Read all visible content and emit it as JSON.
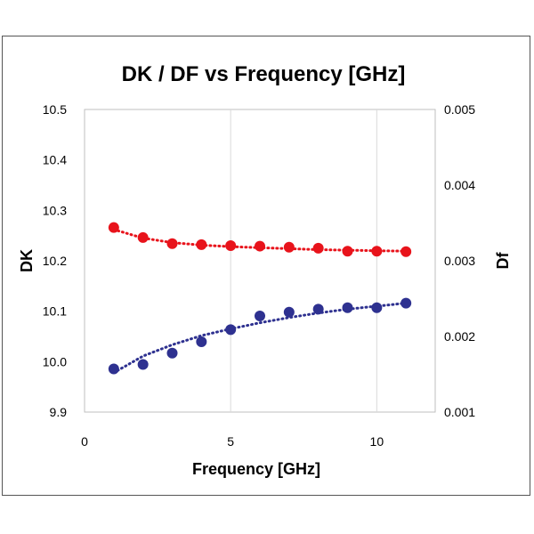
{
  "chart_data": {
    "type": "scatter",
    "title": "DK / DF vs Frequency [GHz]",
    "xlabel": "Frequency [GHz]",
    "ylabel": "DK",
    "y2label": "Df",
    "xlim": [
      0,
      12
    ],
    "ylim": [
      9.9,
      10.5
    ],
    "y2lim": [
      0.001,
      0.005
    ],
    "x_ticks": [
      "0",
      "5",
      "10"
    ],
    "x_tick_values": [
      0,
      5,
      10
    ],
    "y_ticks": [
      "9.9",
      "10.0",
      "10.1",
      "10.2",
      "10.3",
      "10.4",
      "10.5"
    ],
    "y_tick_values": [
      9.9,
      10.0,
      10.1,
      10.2,
      10.3,
      10.4,
      10.5
    ],
    "y2_ticks": [
      "0.001",
      "0.002",
      "0.003",
      "0.004",
      "0.005"
    ],
    "y2_tick_values": [
      0.001,
      0.002,
      0.003,
      0.004,
      0.005
    ],
    "grid": "vertical",
    "series": [
      {
        "name": "DK",
        "axis": "left",
        "color": "#e8131b",
        "x": [
          1,
          2,
          3,
          4,
          5,
          6,
          7,
          8,
          9,
          10,
          11
        ],
        "values": [
          10.266,
          10.246,
          10.234,
          10.232,
          10.23,
          10.229,
          10.227,
          10.225,
          10.219,
          10.219,
          10.218
        ],
        "trend": [
          10.262,
          10.245,
          10.236,
          10.231,
          10.228,
          10.226,
          10.224,
          10.222,
          10.221,
          10.22,
          10.219
        ]
      },
      {
        "name": "Df",
        "axis": "right",
        "color": "#2e3190",
        "x": [
          1,
          2,
          3,
          4,
          5,
          6,
          7,
          8,
          9,
          10,
          11
        ],
        "values": [
          0.00157,
          0.00163,
          0.00178,
          0.00193,
          0.00209,
          0.00227,
          0.00232,
          0.00236,
          0.00238,
          0.00238,
          0.00244
        ],
        "trend": [
          0.00152,
          0.00174,
          0.00189,
          0.00201,
          0.0021,
          0.00218,
          0.00225,
          0.00231,
          0.00236,
          0.0024,
          0.00244
        ]
      }
    ]
  }
}
